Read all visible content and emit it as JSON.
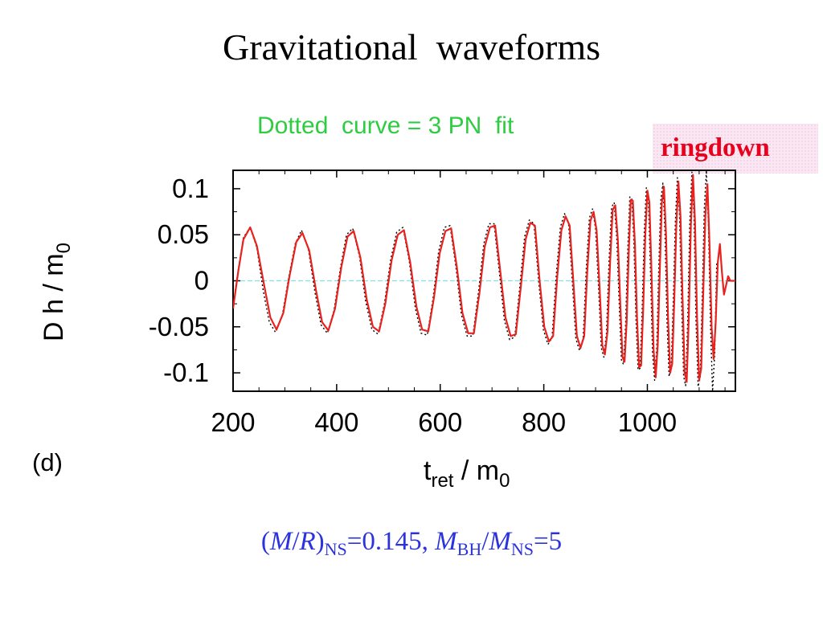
{
  "title": "Gravitational  waveforms",
  "subtitle": "Dotted  curve = 3 PN  fit",
  "ringdown_label": "ringdown",
  "panel_label": "(d)",
  "params": {
    "p1": "(",
    "M": "M",
    "slash": "/",
    "R": "R",
    "close": ")",
    "ns_sub": "NS",
    "eq1": "=0.145, ",
    "Mbh": "M",
    "bh_sub": "BH",
    "slash2": "/",
    "Mns": "M",
    "ns_sub2": "NS",
    "eq2": "=5"
  },
  "colors": {
    "numerical": "#e8231f",
    "pn_fit": "#000000",
    "zero_line": "#7fe3e8",
    "subtitle": "#2ecc40",
    "params": "#2b33dd"
  },
  "chart_data": {
    "type": "line",
    "xlabel_main": "t",
    "xlabel_sub": "ret",
    "xlabel_rest": " / m",
    "xlabel_sub2": "0",
    "ylabel_main": "D h / m",
    "ylabel_sub": "0",
    "xlim": [
      200,
      1170
    ],
    "ylim": [
      -0.12,
      0.12
    ],
    "xticks": [
      {
        "value": 200,
        "label": "200"
      },
      {
        "value": 400,
        "label": "400"
      },
      {
        "value": 600,
        "label": "600"
      },
      {
        "value": 800,
        "label": "800"
      },
      {
        "value": 1000,
        "label": "1000"
      }
    ],
    "yticks": [
      {
        "value": 0.1,
        "label": "0.1"
      },
      {
        "value": 0.05,
        "label": "0.05"
      },
      {
        "value": 0,
        "label": "0"
      },
      {
        "value": -0.05,
        "label": "-0.05"
      },
      {
        "value": -0.1,
        "label": "-0.1"
      }
    ],
    "series": [
      {
        "style": "solid",
        "points": [
          [
            200,
            -0.03
          ],
          [
            210,
            0.01
          ],
          [
            220,
            0.045
          ],
          [
            233,
            0.058
          ],
          [
            246,
            0.038
          ],
          [
            260,
            -0.005
          ],
          [
            272,
            -0.04
          ],
          [
            284,
            -0.053
          ],
          [
            297,
            -0.035
          ],
          [
            309,
            0.005
          ],
          [
            322,
            0.042
          ],
          [
            334,
            0.052
          ],
          [
            347,
            0.033
          ],
          [
            360,
            -0.01
          ],
          [
            372,
            -0.045
          ],
          [
            384,
            -0.054
          ],
          [
            397,
            -0.03
          ],
          [
            409,
            0.015
          ],
          [
            421,
            0.048
          ],
          [
            433,
            0.054
          ],
          [
            446,
            0.025
          ],
          [
            458,
            -0.02
          ],
          [
            470,
            -0.05
          ],
          [
            482,
            -0.055
          ],
          [
            494,
            -0.025
          ],
          [
            506,
            0.022
          ],
          [
            518,
            0.05
          ],
          [
            530,
            0.055
          ],
          [
            542,
            0.02
          ],
          [
            554,
            -0.028
          ],
          [
            565,
            -0.053
          ],
          [
            577,
            -0.055
          ],
          [
            588,
            -0.018
          ],
          [
            599,
            0.03
          ],
          [
            610,
            0.054
          ],
          [
            621,
            0.057
          ],
          [
            632,
            0.015
          ],
          [
            643,
            -0.035
          ],
          [
            654,
            -0.057
          ],
          [
            665,
            -0.057
          ],
          [
            676,
            -0.012
          ],
          [
            686,
            0.037
          ],
          [
            696,
            0.058
          ],
          [
            706,
            0.06
          ],
          [
            716,
            0.01
          ],
          [
            726,
            -0.04
          ],
          [
            736,
            -0.06
          ],
          [
            746,
            -0.058
          ],
          [
            756,
            -0.005
          ],
          [
            765,
            0.045
          ],
          [
            774,
            0.063
          ],
          [
            783,
            0.06
          ],
          [
            792,
            0.0
          ],
          [
            801,
            -0.05
          ],
          [
            810,
            -0.066
          ],
          [
            818,
            -0.06
          ],
          [
            826,
            0.005
          ],
          [
            834,
            0.055
          ],
          [
            842,
            0.07
          ],
          [
            850,
            0.06
          ],
          [
            857,
            0.0
          ],
          [
            864,
            -0.06
          ],
          [
            871,
            -0.073
          ],
          [
            878,
            -0.06
          ],
          [
            884,
            0.01
          ],
          [
            890,
            0.065
          ],
          [
            896,
            0.075
          ],
          [
            902,
            0.055
          ],
          [
            908,
            -0.01
          ],
          [
            913,
            -0.07
          ],
          [
            918,
            -0.08
          ],
          [
            923,
            -0.055
          ],
          [
            928,
            0.02
          ],
          [
            933,
            0.077
          ],
          [
            938,
            0.082
          ],
          [
            943,
            0.045
          ],
          [
            948,
            -0.03
          ],
          [
            952,
            -0.083
          ],
          [
            956,
            -0.088
          ],
          [
            960,
            -0.045
          ],
          [
            964,
            0.03
          ],
          [
            968,
            0.088
          ],
          [
            972,
            0.087
          ],
          [
            976,
            0.04
          ],
          [
            980,
            -0.04
          ],
          [
            984,
            -0.094
          ],
          [
            988,
            -0.092
          ],
          [
            992,
            -0.03
          ],
          [
            996,
            0.05
          ],
          [
            1000,
            0.098
          ],
          [
            1004,
            0.085
          ],
          [
            1008,
            0.01
          ],
          [
            1012,
            -0.075
          ],
          [
            1016,
            -0.105
          ],
          [
            1020,
            -0.07
          ],
          [
            1024,
            0.01
          ],
          [
            1028,
            0.085
          ],
          [
            1032,
            0.102
          ],
          [
            1036,
            0.05
          ],
          [
            1040,
            -0.04
          ],
          [
            1044,
            -0.1
          ],
          [
            1048,
            -0.09
          ],
          [
            1052,
            -0.02
          ],
          [
            1056,
            0.06
          ],
          [
            1060,
            0.108
          ],
          [
            1064,
            0.07
          ],
          [
            1068,
            -0.02
          ],
          [
            1072,
            -0.1
          ],
          [
            1076,
            -0.11
          ],
          [
            1080,
            -0.04
          ],
          [
            1084,
            0.06
          ],
          [
            1088,
            0.115
          ],
          [
            1092,
            0.065
          ],
          [
            1096,
            -0.04
          ],
          [
            1100,
            -0.108
          ],
          [
            1104,
            -0.095
          ],
          [
            1108,
            -0.01
          ],
          [
            1112,
            0.07
          ],
          [
            1116,
            0.105
          ],
          [
            1120,
            0.04
          ],
          [
            1124,
            -0.05
          ],
          [
            1128,
            -0.085
          ],
          [
            1132,
            -0.045
          ],
          [
            1136,
            0.02
          ],
          [
            1140,
            0.04
          ],
          [
            1144,
            0.01
          ],
          [
            1148,
            -0.015
          ],
          [
            1152,
            -0.005
          ],
          [
            1156,
            0.005
          ],
          [
            1160,
            0.0
          ],
          [
            1170,
            0.0
          ]
        ]
      },
      {
        "style": "dotted",
        "points": [
          [
            200,
            -0.028
          ],
          [
            210,
            0.012
          ],
          [
            220,
            0.047
          ],
          [
            233,
            0.058
          ],
          [
            246,
            0.036
          ],
          [
            258,
            -0.01
          ],
          [
            270,
            -0.045
          ],
          [
            282,
            -0.056
          ],
          [
            295,
            -0.038
          ],
          [
            307,
            0.002
          ],
          [
            320,
            0.04
          ],
          [
            332,
            0.055
          ],
          [
            345,
            0.036
          ],
          [
            358,
            -0.012
          ],
          [
            370,
            -0.048
          ],
          [
            382,
            -0.057
          ],
          [
            395,
            -0.032
          ],
          [
            407,
            0.013
          ],
          [
            419,
            0.05
          ],
          [
            431,
            0.057
          ],
          [
            444,
            0.027
          ],
          [
            456,
            -0.022
          ],
          [
            468,
            -0.053
          ],
          [
            480,
            -0.058
          ],
          [
            492,
            -0.026
          ],
          [
            504,
            0.022
          ],
          [
            516,
            0.053
          ],
          [
            528,
            0.058
          ],
          [
            540,
            0.022
          ],
          [
            552,
            -0.03
          ],
          [
            563,
            -0.057
          ],
          [
            575,
            -0.059
          ],
          [
            586,
            -0.02
          ],
          [
            597,
            0.032
          ],
          [
            608,
            0.058
          ],
          [
            619,
            0.06
          ],
          [
            630,
            0.016
          ],
          [
            641,
            -0.037
          ],
          [
            652,
            -0.06
          ],
          [
            663,
            -0.06
          ],
          [
            674,
            -0.012
          ],
          [
            684,
            0.04
          ],
          [
            694,
            0.062
          ],
          [
            704,
            0.062
          ],
          [
            714,
            0.01
          ],
          [
            724,
            -0.043
          ],
          [
            734,
            -0.064
          ],
          [
            744,
            -0.061
          ],
          [
            754,
            -0.004
          ],
          [
            763,
            0.048
          ],
          [
            772,
            0.066
          ],
          [
            781,
            0.062
          ],
          [
            790,
            0.0
          ],
          [
            799,
            -0.053
          ],
          [
            808,
            -0.069
          ],
          [
            816,
            -0.062
          ],
          [
            824,
            0.006
          ],
          [
            832,
            0.058
          ],
          [
            840,
            0.073
          ],
          [
            848,
            0.062
          ],
          [
            855,
            0.0
          ],
          [
            862,
            -0.063
          ],
          [
            869,
            -0.076
          ],
          [
            876,
            -0.062
          ],
          [
            882,
            0.012
          ],
          [
            888,
            0.068
          ],
          [
            894,
            0.078
          ],
          [
            900,
            0.057
          ],
          [
            906,
            -0.01
          ],
          [
            911,
            -0.073
          ],
          [
            916,
            -0.083
          ],
          [
            921,
            -0.057
          ],
          [
            926,
            0.022
          ],
          [
            931,
            0.08
          ],
          [
            936,
            0.085
          ],
          [
            941,
            0.047
          ],
          [
            946,
            -0.03
          ],
          [
            950,
            -0.086
          ],
          [
            954,
            -0.091
          ],
          [
            958,
            -0.047
          ],
          [
            962,
            0.032
          ],
          [
            966,
            0.091
          ],
          [
            970,
            0.09
          ],
          [
            974,
            0.042
          ],
          [
            978,
            -0.042
          ],
          [
            982,
            -0.097
          ],
          [
            986,
            -0.095
          ],
          [
            990,
            -0.032
          ],
          [
            994,
            0.052
          ],
          [
            998,
            0.101
          ],
          [
            1002,
            0.088
          ],
          [
            1006,
            0.012
          ],
          [
            1010,
            -0.078
          ],
          [
            1014,
            -0.108
          ],
          [
            1018,
            -0.074
          ],
          [
            1022,
            0.012
          ],
          [
            1026,
            0.088
          ],
          [
            1030,
            0.106
          ],
          [
            1034,
            0.053
          ],
          [
            1038,
            -0.043
          ],
          [
            1042,
            -0.104
          ],
          [
            1046,
            -0.094
          ],
          [
            1050,
            -0.022
          ],
          [
            1054,
            0.064
          ],
          [
            1058,
            0.112
          ],
          [
            1062,
            0.074
          ],
          [
            1066,
            -0.022
          ],
          [
            1070,
            -0.104
          ],
          [
            1074,
            -0.114
          ],
          [
            1078,
            -0.043
          ],
          [
            1082,
            0.064
          ],
          [
            1086,
            0.118
          ],
          [
            1090,
            0.07
          ],
          [
            1094,
            -0.044
          ],
          [
            1098,
            -0.115
          ],
          [
            1102,
            -0.105
          ],
          [
            1106,
            -0.015
          ],
          [
            1110,
            0.078
          ],
          [
            1114,
            0.12
          ],
          [
            1118,
            0.06
          ],
          [
            1122,
            -0.05
          ],
          [
            1126,
            -0.12
          ],
          [
            1130,
            -0.08
          ],
          [
            1134,
            0.02
          ]
        ]
      }
    ]
  }
}
